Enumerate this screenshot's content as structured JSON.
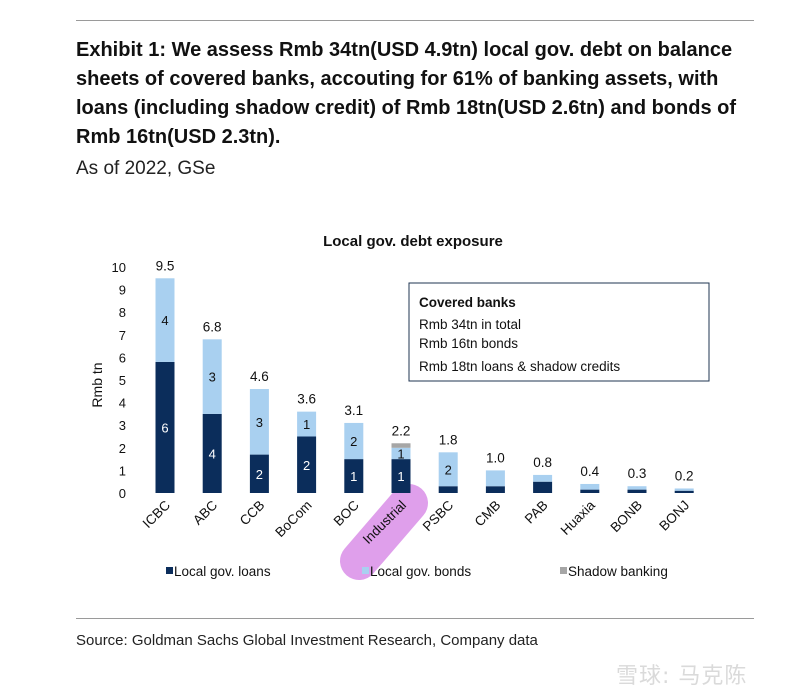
{
  "header": {
    "title": "Exhibit 1: We assess Rmb 34tn(USD 4.9tn) local gov. debt on balance sheets of covered banks, accouting for 61% of banking assets, with loans (including shadow credit) of Rmb 18tn(USD 2.6tn) and bonds of Rmb 16tn(USD 2.3tn).",
    "subtitle": "As of 2022, GSe"
  },
  "footer": {
    "source": "Source: Goldman Sachs Global Investment Research, Company data",
    "watermark": "雪球: 马克陈"
  },
  "chart_data": {
    "type": "bar",
    "stacked": true,
    "title": "Local gov. debt exposure",
    "xlabel": "",
    "ylabel": "Rmb tn",
    "ylim": [
      0,
      10
    ],
    "yticks": [
      0,
      1,
      2,
      3,
      4,
      5,
      6,
      7,
      8,
      9,
      10
    ],
    "grid": false,
    "legend_position": "bottom",
    "categories": [
      "ICBC",
      "ABC",
      "CCB",
      "BoCom",
      "BOC",
      "Industrial",
      "PSBC",
      "CMB",
      "PAB",
      "Huaxia",
      "BONB",
      "BONJ"
    ],
    "series": [
      {
        "name": "Local gov. loans",
        "color": "#0b2d5b",
        "values": [
          5.8,
          3.5,
          1.7,
          2.5,
          1.5,
          1.5,
          0.3,
          0.3,
          0.5,
          0.15,
          0.15,
          0.1
        ],
        "labels": [
          "6",
          "4",
          "2",
          "2",
          "1",
          "1",
          "",
          "",
          "",
          "",
          "",
          ""
        ]
      },
      {
        "name": "Local gov. bonds",
        "color": "#a9d0f0",
        "values": [
          3.7,
          3.3,
          2.9,
          1.1,
          1.6,
          0.5,
          1.5,
          0.7,
          0.3,
          0.25,
          0.15,
          0.1
        ],
        "labels": [
          "4",
          "3",
          "3",
          "1",
          "2",
          "1",
          "2",
          "",
          "",
          "",
          "",
          ""
        ]
      },
      {
        "name": "Shadow banking",
        "color": "#a6a6a6",
        "values": [
          0,
          0,
          0,
          0,
          0,
          0.2,
          0,
          0,
          0,
          0,
          0,
          0
        ],
        "labels": [
          "",
          "",
          "",
          "",
          "",
          "",
          "",
          "",
          "",
          "",
          "",
          ""
        ]
      }
    ],
    "totals": [
      9.5,
      6.8,
      4.6,
      3.6,
      3.1,
      2.2,
      1.8,
      1.0,
      0.8,
      0.4,
      0.3,
      0.2
    ],
    "total_labels": [
      "9.5",
      "6.8",
      "4.6",
      "3.6",
      "3.1",
      "2.2",
      "1.8",
      "1.0",
      "0.8",
      "0.4",
      "0.3",
      "0.2"
    ],
    "annotation_box": {
      "heading": "Covered banks",
      "lines": [
        "Rmb 34tn in total",
        "Rmb 16tn bonds",
        "Rmb 18tn loans & shadow credits"
      ]
    },
    "highlight_category": "Industrial",
    "highlight_color": "#d98ee8"
  }
}
